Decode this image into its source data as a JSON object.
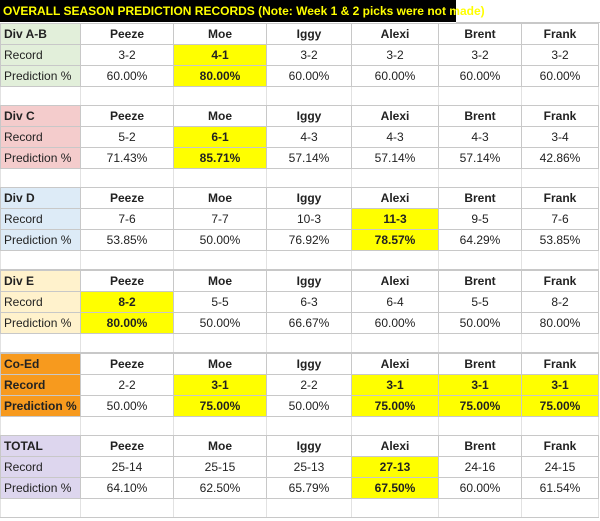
{
  "title": "OVERALL SEASON PREDICTION RECORDS (Note: Week 1 & 2 picks were not made)",
  "colors": {
    "highlight": "#ffff00",
    "title_bg": "#000000",
    "title_fg": "#ffff00",
    "divab": "#e2efda",
    "divc": "#f4cccc",
    "divd": "#ddebf7",
    "dive": "#fff2cc",
    "coed": "#f79a1e",
    "total": "#ddd6ee"
  },
  "players": [
    "Peeze",
    "Moe",
    "Iggy",
    "Alexi",
    "Brent",
    "Frank"
  ],
  "row_labels": {
    "record": "Record",
    "prediction": "Prediction %"
  },
  "sections": [
    {
      "name": "Div A-B",
      "color_key": "divab",
      "bold_labels": false,
      "record": [
        "3-2",
        "4-1",
        "3-2",
        "3-2",
        "3-2",
        "3-2"
      ],
      "prediction": [
        "60.00%",
        "80.00%",
        "60.00%",
        "60.00%",
        "60.00%",
        "60.00%"
      ],
      "highlight": [
        1
      ]
    },
    {
      "name": "Div C",
      "color_key": "divc",
      "bold_labels": false,
      "record": [
        "5-2",
        "6-1",
        "4-3",
        "4-3",
        "4-3",
        "3-4"
      ],
      "prediction": [
        "71.43%",
        "85.71%",
        "57.14%",
        "57.14%",
        "57.14%",
        "42.86%"
      ],
      "highlight": [
        1
      ]
    },
    {
      "name": "Div D",
      "color_key": "divd",
      "bold_labels": false,
      "record": [
        "7-6",
        "7-7",
        "10-3",
        "11-3",
        "9-5",
        "7-6"
      ],
      "prediction": [
        "53.85%",
        "50.00%",
        "76.92%",
        "78.57%",
        "64.29%",
        "53.85%"
      ],
      "highlight": [
        3
      ]
    },
    {
      "name": "Div E",
      "color_key": "dive",
      "bold_labels": false,
      "record": [
        "8-2",
        "5-5",
        "6-3",
        "6-4",
        "5-5",
        "8-2"
      ],
      "prediction": [
        "80.00%",
        "50.00%",
        "66.67%",
        "60.00%",
        "50.00%",
        "80.00%"
      ],
      "highlight": [
        0
      ]
    },
    {
      "name": "Co-Ed",
      "color_key": "coed",
      "bold_labels": true,
      "record": [
        "2-2",
        "3-1",
        "2-2",
        "3-1",
        "3-1",
        "3-1"
      ],
      "prediction": [
        "50.00%",
        "75.00%",
        "50.00%",
        "75.00%",
        "75.00%",
        "75.00%"
      ],
      "highlight": [
        1,
        3,
        4,
        5
      ]
    },
    {
      "name": "TOTAL",
      "color_key": "total",
      "bold_labels": false,
      "record": [
        "25-14",
        "25-15",
        "25-13",
        "27-13",
        "24-16",
        "24-15"
      ],
      "prediction": [
        "64.10%",
        "62.50%",
        "65.79%",
        "67.50%",
        "60.00%",
        "61.54%"
      ],
      "highlight": [
        3
      ]
    }
  ]
}
